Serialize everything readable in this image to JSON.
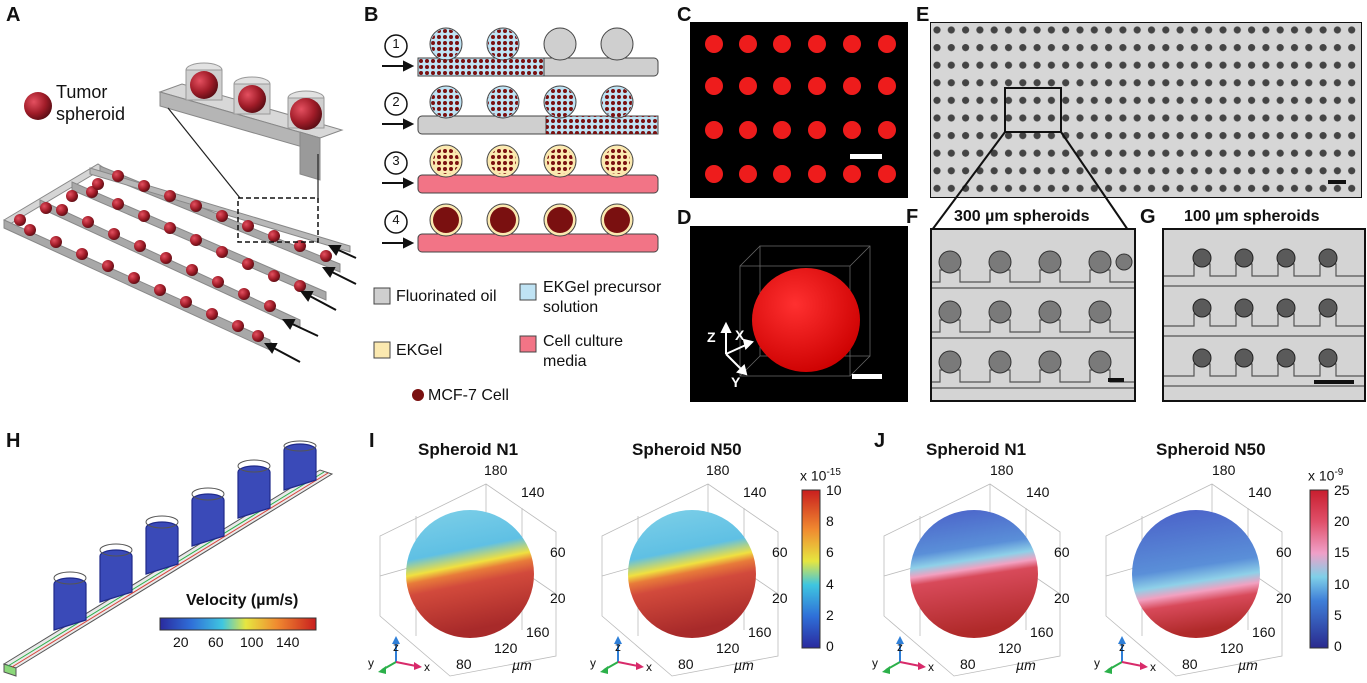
{
  "panels": {
    "A": "A",
    "B": "B",
    "C": "C",
    "D": "D",
    "E": "E",
    "F": "F",
    "G": "G",
    "H": "H",
    "I": "I",
    "J": "J"
  },
  "a": {
    "legend_line1": "Tumor",
    "legend_line2": "spheroid"
  },
  "b": {
    "steps": [
      "1",
      "2",
      "3",
      "4"
    ],
    "legend": {
      "oil": "Fluorinated oil",
      "precursor_line1": "EKGel precursor",
      "precursor_line2": "solution",
      "ekgel": "EKGel",
      "media_line1": "Cell culture",
      "media_line2": "media",
      "cell": "MCF-7 Cell"
    },
    "colors": {
      "oil": "#cfcfcf",
      "precursor": "#bfe3f4",
      "ekgel": "#fbe9b0",
      "media": "#f27486",
      "cell": "#7a1010"
    }
  },
  "d": {
    "axes": {
      "z": "Z",
      "x": "X",
      "y": "Y"
    }
  },
  "f": {
    "title": "300 µm spheroids"
  },
  "g": {
    "title": "100 µm spheroids"
  },
  "h": {
    "colorbar_title": "Velocity (µm/s)",
    "ticks": [
      "20",
      "60",
      "100",
      "140"
    ]
  },
  "i": {
    "titles": [
      "Spheroid N1",
      "Spheroid N50"
    ],
    "axis_ticks": {
      "top": "180",
      "t140": "140",
      "t60": "60",
      "t20": "20",
      "t160": "160",
      "t120": "120",
      "t80": "80",
      "unit": "µm"
    },
    "colorbar": {
      "exponent_base": "x 10",
      "exponent": "-15",
      "ticks": [
        "10",
        "8",
        "6",
        "4",
        "2",
        "0"
      ]
    },
    "triad": {
      "z": "z",
      "y": "y",
      "x": "x"
    }
  },
  "j": {
    "titles": [
      "Spheroid N1",
      "Spheroid N50"
    ],
    "axis_ticks": {
      "top": "180",
      "t140": "140",
      "t60": "60",
      "t20": "20",
      "t160": "160",
      "t120": "120",
      "t80": "80",
      "unit": "µm"
    },
    "colorbar": {
      "exponent_base": "x 10",
      "exponent": "-9",
      "ticks": [
        "25",
        "20",
        "15",
        "10",
        "5",
        "0"
      ]
    },
    "triad": {
      "z": "z",
      "y": "y",
      "x": "x"
    }
  }
}
